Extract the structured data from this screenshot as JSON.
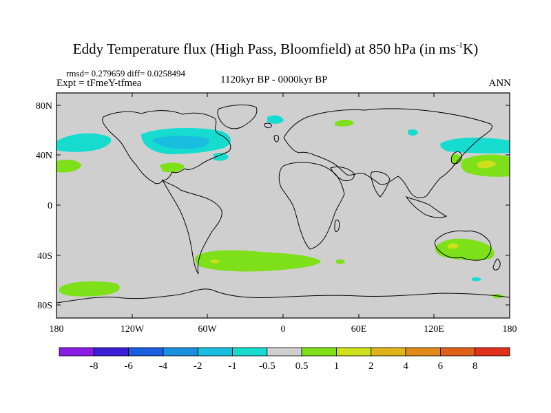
{
  "title_main": "Eddy Temperature flux (High Pass, Bloomfield) at 850 hPa (in ms",
  "title_sup": "-1",
  "title_end": "K)",
  "stats": "rmsd= 0.279659 diff= 0.0258494",
  "expt": "Expt = tFmeY-tfmea",
  "period": "1120kyr BP - 0000kyr BP",
  "season": "ANN",
  "lat_ticks": [
    "80N",
    "40N",
    "0",
    "40S",
    "80S"
  ],
  "lon_ticks": [
    "180",
    "120W",
    "60W",
    "0",
    "60E",
    "120E",
    "180"
  ],
  "colorbar": {
    "colors": [
      "#8a1ce6",
      "#3b1fd6",
      "#1a5fe0",
      "#1a8fe0",
      "#18bde0",
      "#16dcd0",
      "#cfcfcf",
      "#7ee019",
      "#cde019",
      "#e0b419",
      "#e08a19",
      "#e06019",
      "#e03019"
    ],
    "labels": [
      "-8",
      "-6",
      "-4",
      "-2",
      "-1",
      "-0.5",
      "0.5",
      "1",
      "2",
      "4",
      "6",
      "8"
    ]
  },
  "colors": {
    "land_ocean": "#cfcfcf",
    "neg_light": "#16dcd0",
    "neg_mid": "#18bde0",
    "pos_light": "#7ee019",
    "pos_mid": "#cde019"
  }
}
